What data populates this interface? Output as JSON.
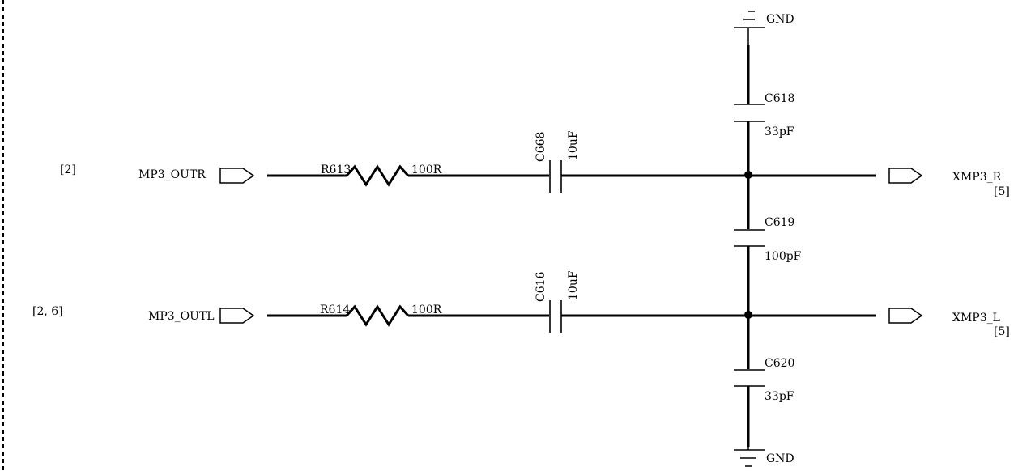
{
  "sheet_refs": {
    "r_ref": "[2]",
    "l_ref": "[2, 6]",
    "xr_ref": "[5]",
    "xl_ref": "[5]"
  },
  "ports": {
    "in_r": "MP3_OUTR",
    "in_l": "MP3_OUTL",
    "out_r": "XMP3_R",
    "out_l": "XMP3_L"
  },
  "resistors": {
    "r613": {
      "ref": "R613",
      "value": "100R"
    },
    "r614": {
      "ref": "R614",
      "value": "100R"
    }
  },
  "capacitors": {
    "c668": {
      "ref": "C668",
      "value": "10uF"
    },
    "c616": {
      "ref": "C616",
      "value": "10uF"
    },
    "c618": {
      "ref": "C618",
      "value": "33pF"
    },
    "c619": {
      "ref": "C619",
      "value": "100pF"
    },
    "c620": {
      "ref": "C620",
      "value": "33pF"
    }
  },
  "power": {
    "gnd_top": "GND",
    "gnd_bottom": "GND"
  },
  "colors": {
    "ink": "#000000",
    "background": "#ffffff"
  }
}
